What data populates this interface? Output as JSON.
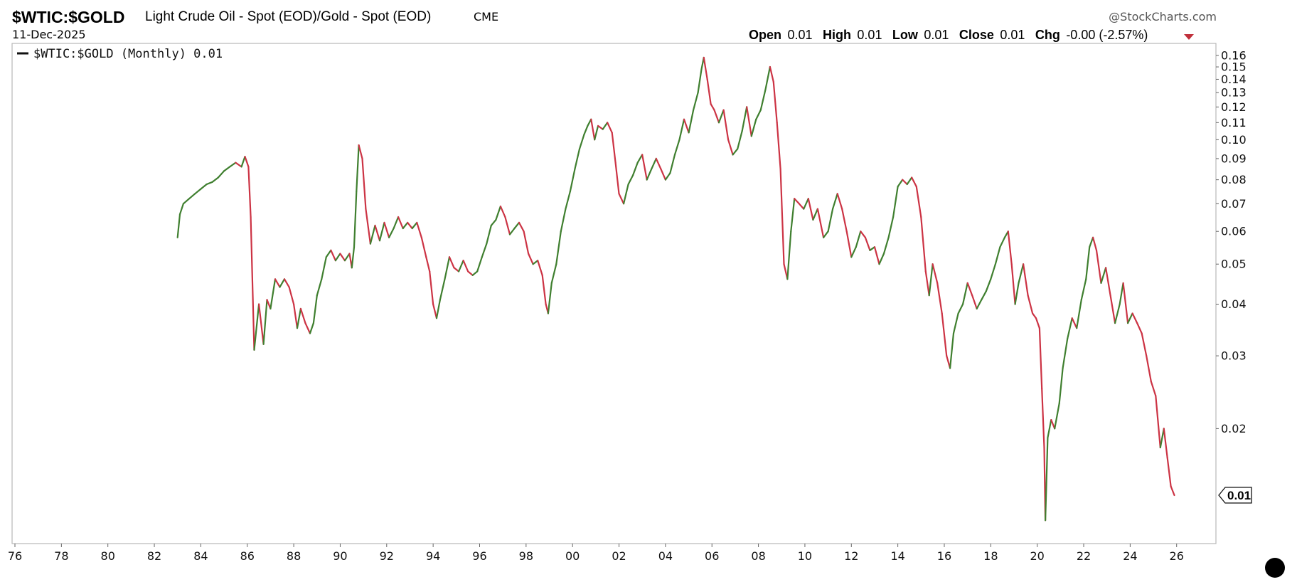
{
  "header": {
    "symbol": "$WTIC:$GOLD",
    "description": "Light Crude Oil - Spot (EOD)/Gold - Spot (EOD)",
    "exchange": "CME",
    "date": "11-Dec-2025",
    "watermark": "@StockCharts.com",
    "ohlc": {
      "open_label": "Open",
      "open": "0.01",
      "high_label": "High",
      "high": "0.01",
      "low_label": "Low",
      "low": "0.01",
      "close_label": "Close",
      "close": "0.01",
      "chg_label": "Chg",
      "chg": "-0.00 (-2.57%)",
      "chg_icon": "down-triangle-icon"
    }
  },
  "legend": {
    "label": "$WTIC:$GOLD (Monthly) 0.01"
  },
  "last_value_marker": "0.01",
  "colors": {
    "up": "#3f7f2f",
    "down": "#cc3344",
    "frame": "#b8b8b8",
    "text": "#111111"
  },
  "chart_data": {
    "type": "line",
    "title": "$WTIC:$GOLD",
    "xlabel": "",
    "ylabel": "",
    "scale": "log",
    "ylim": [
      0.0115,
      0.165
    ],
    "xlim": [
      1976.0,
      2027.6
    ],
    "grid": false,
    "legend_position": "top-left",
    "x_ticks": [
      "76",
      "78",
      "80",
      "82",
      "84",
      "86",
      "88",
      "90",
      "92",
      "94",
      "96",
      "98",
      "00",
      "02",
      "04",
      "06",
      "08",
      "10",
      "12",
      "14",
      "16",
      "18",
      "20",
      "22",
      "24",
      "26"
    ],
    "y_ticks": [
      "0.16",
      "0.15",
      "0.14",
      "0.13",
      "0.12",
      "0.11",
      "0.10",
      "0.09",
      "0.08",
      "0.07",
      "0.06",
      "0.05",
      "0.04",
      "0.03",
      "0.02"
    ],
    "series": [
      {
        "name": "$WTIC:$GOLD (Monthly)",
        "points": [
          [
            1983.0,
            0.058
          ],
          [
            1983.1,
            0.066
          ],
          [
            1983.25,
            0.07
          ],
          [
            1983.5,
            0.072
          ],
          [
            1983.75,
            0.074
          ],
          [
            1984.0,
            0.076
          ],
          [
            1984.25,
            0.078
          ],
          [
            1984.5,
            0.079
          ],
          [
            1984.75,
            0.081
          ],
          [
            1985.0,
            0.084
          ],
          [
            1985.25,
            0.086
          ],
          [
            1985.5,
            0.088
          ],
          [
            1985.75,
            0.086
          ],
          [
            1985.9,
            0.091
          ],
          [
            1986.05,
            0.086
          ],
          [
            1986.15,
            0.065
          ],
          [
            1986.3,
            0.031
          ],
          [
            1986.5,
            0.04
          ],
          [
            1986.7,
            0.032
          ],
          [
            1986.85,
            0.041
          ],
          [
            1987.0,
            0.039
          ],
          [
            1987.2,
            0.046
          ],
          [
            1987.4,
            0.044
          ],
          [
            1987.6,
            0.046
          ],
          [
            1987.8,
            0.044
          ],
          [
            1988.0,
            0.04
          ],
          [
            1988.15,
            0.035
          ],
          [
            1988.3,
            0.039
          ],
          [
            1988.5,
            0.036
          ],
          [
            1988.7,
            0.034
          ],
          [
            1988.85,
            0.036
          ],
          [
            1989.0,
            0.042
          ],
          [
            1989.2,
            0.046
          ],
          [
            1989.4,
            0.052
          ],
          [
            1989.6,
            0.054
          ],
          [
            1989.8,
            0.051
          ],
          [
            1990.0,
            0.053
          ],
          [
            1990.2,
            0.051
          ],
          [
            1990.4,
            0.053
          ],
          [
            1990.5,
            0.049
          ],
          [
            1990.6,
            0.055
          ],
          [
            1990.7,
            0.075
          ],
          [
            1990.8,
            0.097
          ],
          [
            1990.95,
            0.09
          ],
          [
            1991.1,
            0.068
          ],
          [
            1991.3,
            0.056
          ],
          [
            1991.5,
            0.062
          ],
          [
            1991.7,
            0.057
          ],
          [
            1991.9,
            0.063
          ],
          [
            1992.1,
            0.058
          ],
          [
            1992.3,
            0.061
          ],
          [
            1992.5,
            0.065
          ],
          [
            1992.7,
            0.061
          ],
          [
            1992.9,
            0.063
          ],
          [
            1993.1,
            0.061
          ],
          [
            1993.3,
            0.063
          ],
          [
            1993.5,
            0.058
          ],
          [
            1993.7,
            0.052
          ],
          [
            1993.85,
            0.048
          ],
          [
            1994.0,
            0.04
          ],
          [
            1994.15,
            0.037
          ],
          [
            1994.3,
            0.041
          ],
          [
            1994.5,
            0.046
          ],
          [
            1994.7,
            0.052
          ],
          [
            1994.9,
            0.049
          ],
          [
            1995.1,
            0.048
          ],
          [
            1995.3,
            0.051
          ],
          [
            1995.5,
            0.048
          ],
          [
            1995.7,
            0.047
          ],
          [
            1995.9,
            0.048
          ],
          [
            1996.1,
            0.052
          ],
          [
            1996.3,
            0.056
          ],
          [
            1996.5,
            0.062
          ],
          [
            1996.7,
            0.064
          ],
          [
            1996.9,
            0.069
          ],
          [
            1997.1,
            0.065
          ],
          [
            1997.3,
            0.059
          ],
          [
            1997.5,
            0.061
          ],
          [
            1997.7,
            0.063
          ],
          [
            1997.9,
            0.06
          ],
          [
            1998.1,
            0.053
          ],
          [
            1998.3,
            0.05
          ],
          [
            1998.5,
            0.051
          ],
          [
            1998.7,
            0.047
          ],
          [
            1998.85,
            0.04
          ],
          [
            1998.95,
            0.038
          ],
          [
            1999.1,
            0.045
          ],
          [
            1999.3,
            0.05
          ],
          [
            1999.5,
            0.06
          ],
          [
            1999.7,
            0.068
          ],
          [
            1999.9,
            0.075
          ],
          [
            2000.1,
            0.085
          ],
          [
            2000.3,
            0.095
          ],
          [
            2000.5,
            0.103
          ],
          [
            2000.65,
            0.108
          ],
          [
            2000.8,
            0.112
          ],
          [
            2000.95,
            0.1
          ],
          [
            2001.1,
            0.108
          ],
          [
            2001.3,
            0.106
          ],
          [
            2001.5,
            0.11
          ],
          [
            2001.7,
            0.104
          ],
          [
            2001.85,
            0.088
          ],
          [
            2002.0,
            0.074
          ],
          [
            2002.2,
            0.07
          ],
          [
            2002.4,
            0.078
          ],
          [
            2002.6,
            0.082
          ],
          [
            2002.8,
            0.088
          ],
          [
            2003.0,
            0.092
          ],
          [
            2003.2,
            0.08
          ],
          [
            2003.4,
            0.085
          ],
          [
            2003.6,
            0.09
          ],
          [
            2003.8,
            0.085
          ],
          [
            2004.0,
            0.08
          ],
          [
            2004.2,
            0.083
          ],
          [
            2004.4,
            0.092
          ],
          [
            2004.6,
            0.1
          ],
          [
            2004.8,
            0.112
          ],
          [
            2005.0,
            0.104
          ],
          [
            2005.2,
            0.118
          ],
          [
            2005.4,
            0.13
          ],
          [
            2005.55,
            0.148
          ],
          [
            2005.65,
            0.158
          ],
          [
            2005.8,
            0.14
          ],
          [
            2005.95,
            0.122
          ],
          [
            2006.1,
            0.118
          ],
          [
            2006.3,
            0.11
          ],
          [
            2006.5,
            0.118
          ],
          [
            2006.7,
            0.1
          ],
          [
            2006.9,
            0.092
          ],
          [
            2007.1,
            0.095
          ],
          [
            2007.3,
            0.105
          ],
          [
            2007.5,
            0.12
          ],
          [
            2007.7,
            0.102
          ],
          [
            2007.9,
            0.112
          ],
          [
            2008.1,
            0.118
          ],
          [
            2008.3,
            0.132
          ],
          [
            2008.5,
            0.15
          ],
          [
            2008.65,
            0.138
          ],
          [
            2008.8,
            0.11
          ],
          [
            2008.95,
            0.085
          ],
          [
            2009.1,
            0.05
          ],
          [
            2009.25,
            0.046
          ],
          [
            2009.4,
            0.06
          ],
          [
            2009.55,
            0.072
          ],
          [
            2009.75,
            0.07
          ],
          [
            2009.95,
            0.068
          ],
          [
            2010.15,
            0.072
          ],
          [
            2010.35,
            0.064
          ],
          [
            2010.55,
            0.068
          ],
          [
            2010.8,
            0.058
          ],
          [
            2011.0,
            0.06
          ],
          [
            2011.2,
            0.068
          ],
          [
            2011.4,
            0.074
          ],
          [
            2011.6,
            0.068
          ],
          [
            2011.8,
            0.06
          ],
          [
            2012.0,
            0.052
          ],
          [
            2012.2,
            0.055
          ],
          [
            2012.4,
            0.06
          ],
          [
            2012.6,
            0.058
          ],
          [
            2012.8,
            0.054
          ],
          [
            2013.0,
            0.055
          ],
          [
            2013.2,
            0.05
          ],
          [
            2013.4,
            0.053
          ],
          [
            2013.6,
            0.058
          ],
          [
            2013.8,
            0.065
          ],
          [
            2014.0,
            0.077
          ],
          [
            2014.2,
            0.08
          ],
          [
            2014.4,
            0.078
          ],
          [
            2014.6,
            0.081
          ],
          [
            2014.8,
            0.077
          ],
          [
            2015.0,
            0.065
          ],
          [
            2015.2,
            0.048
          ],
          [
            2015.35,
            0.042
          ],
          [
            2015.5,
            0.05
          ],
          [
            2015.7,
            0.045
          ],
          [
            2015.9,
            0.038
          ],
          [
            2016.1,
            0.03
          ],
          [
            2016.25,
            0.028
          ],
          [
            2016.4,
            0.034
          ],
          [
            2016.6,
            0.038
          ],
          [
            2016.8,
            0.04
          ],
          [
            2017.0,
            0.045
          ],
          [
            2017.2,
            0.042
          ],
          [
            2017.4,
            0.039
          ],
          [
            2017.6,
            0.041
          ],
          [
            2017.8,
            0.043
          ],
          [
            2018.0,
            0.046
          ],
          [
            2018.2,
            0.05
          ],
          [
            2018.4,
            0.055
          ],
          [
            2018.6,
            0.058
          ],
          [
            2018.75,
            0.06
          ],
          [
            2018.9,
            0.05
          ],
          [
            2019.05,
            0.04
          ],
          [
            2019.2,
            0.045
          ],
          [
            2019.4,
            0.05
          ],
          [
            2019.6,
            0.042
          ],
          [
            2019.8,
            0.038
          ],
          [
            2019.95,
            0.037
          ],
          [
            2020.1,
            0.035
          ],
          [
            2020.2,
            0.025
          ],
          [
            2020.3,
            0.018
          ],
          [
            2020.35,
            0.012
          ],
          [
            2020.45,
            0.019
          ],
          [
            2020.6,
            0.021
          ],
          [
            2020.75,
            0.02
          ],
          [
            2020.95,
            0.023
          ],
          [
            2021.1,
            0.028
          ],
          [
            2021.3,
            0.033
          ],
          [
            2021.5,
            0.037
          ],
          [
            2021.7,
            0.035
          ],
          [
            2021.9,
            0.041
          ],
          [
            2022.1,
            0.046
          ],
          [
            2022.25,
            0.055
          ],
          [
            2022.4,
            0.058
          ],
          [
            2022.55,
            0.054
          ],
          [
            2022.75,
            0.045
          ],
          [
            2022.95,
            0.049
          ],
          [
            2023.15,
            0.042
          ],
          [
            2023.35,
            0.036
          ],
          [
            2023.55,
            0.04
          ],
          [
            2023.7,
            0.045
          ],
          [
            2023.9,
            0.036
          ],
          [
            2024.1,
            0.038
          ],
          [
            2024.3,
            0.036
          ],
          [
            2024.5,
            0.034
          ],
          [
            2024.7,
            0.03
          ],
          [
            2024.9,
            0.026
          ],
          [
            2025.1,
            0.024
          ],
          [
            2025.3,
            0.018
          ],
          [
            2025.45,
            0.02
          ],
          [
            2025.6,
            0.017
          ],
          [
            2025.75,
            0.0145
          ],
          [
            2025.9,
            0.0138
          ]
        ]
      }
    ]
  }
}
